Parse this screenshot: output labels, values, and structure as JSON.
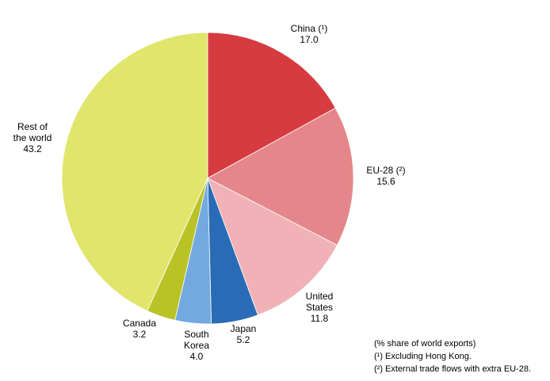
{
  "chart_data": {
    "type": "pie",
    "title": "",
    "slices": [
      {
        "name": "China",
        "label_lines": [
          "China (¹)"
        ],
        "value": 17.0,
        "value_label": "17.0",
        "color": "#d63b40"
      },
      {
        "name": "EU-28",
        "label_lines": [
          "EU-28 (²)"
        ],
        "value": 15.6,
        "value_label": "15.6",
        "color": "#e5878a"
      },
      {
        "name": "United States",
        "label_lines": [
          "United",
          "States"
        ],
        "value": 11.8,
        "value_label": "11.8",
        "color": "#f0b2b6"
      },
      {
        "name": "Japan",
        "label_lines": [
          "Japan"
        ],
        "value": 5.2,
        "value_label": "5.2",
        "color": "#2a6bb5"
      },
      {
        "name": "South Korea",
        "label_lines": [
          "South",
          "Korea"
        ],
        "value": 4.0,
        "value_label": "4.0",
        "color": "#74a9e0"
      },
      {
        "name": "Canada",
        "label_lines": [
          "Canada"
        ],
        "value": 3.2,
        "value_label": "3.2",
        "color": "#b9c326"
      },
      {
        "name": "Rest of the world",
        "label_lines": [
          "Rest of",
          "the world"
        ],
        "value": 43.2,
        "value_label": "43.2",
        "color": "#e0e56c"
      }
    ],
    "start_angle": "12 o'clock",
    "direction": "clockwise",
    "legend": "none"
  },
  "notes": {
    "unit": "(% share of world exports)",
    "footnote_1": "(¹) Excluding Hong Kong.",
    "footnote_2": "(²) External trade flows with extra EU-28."
  }
}
